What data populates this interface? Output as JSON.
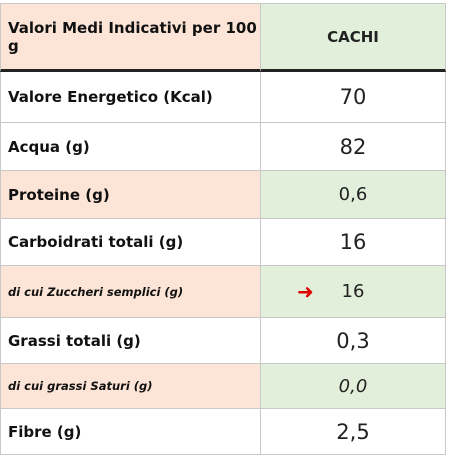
{
  "table": {
    "header": {
      "label": "Valori Medi Indicativi per 100 g",
      "value": "CACHI"
    },
    "rows": [
      {
        "label": "Valore Energetico (Kcal)",
        "value": "70"
      },
      {
        "label": "Acqua (g)",
        "value": "82"
      },
      {
        "label": "Proteine (g)",
        "value": "0,6"
      },
      {
        "label": "Carboidrati totali (g)",
        "value": "16"
      },
      {
        "label": "di cui Zuccheri semplici (g)",
        "value": "16",
        "arrow": "➜"
      },
      {
        "label": "Grassi totali (g)",
        "value": "0,3"
      },
      {
        "label": "di cui grassi Saturi (g)",
        "value": "0,0"
      },
      {
        "label": "Fibre (g)",
        "value": "2,5"
      }
    ]
  },
  "colors": {
    "peach": "#fce4d6",
    "green": "#e2efda",
    "arrow": "#e00000"
  }
}
